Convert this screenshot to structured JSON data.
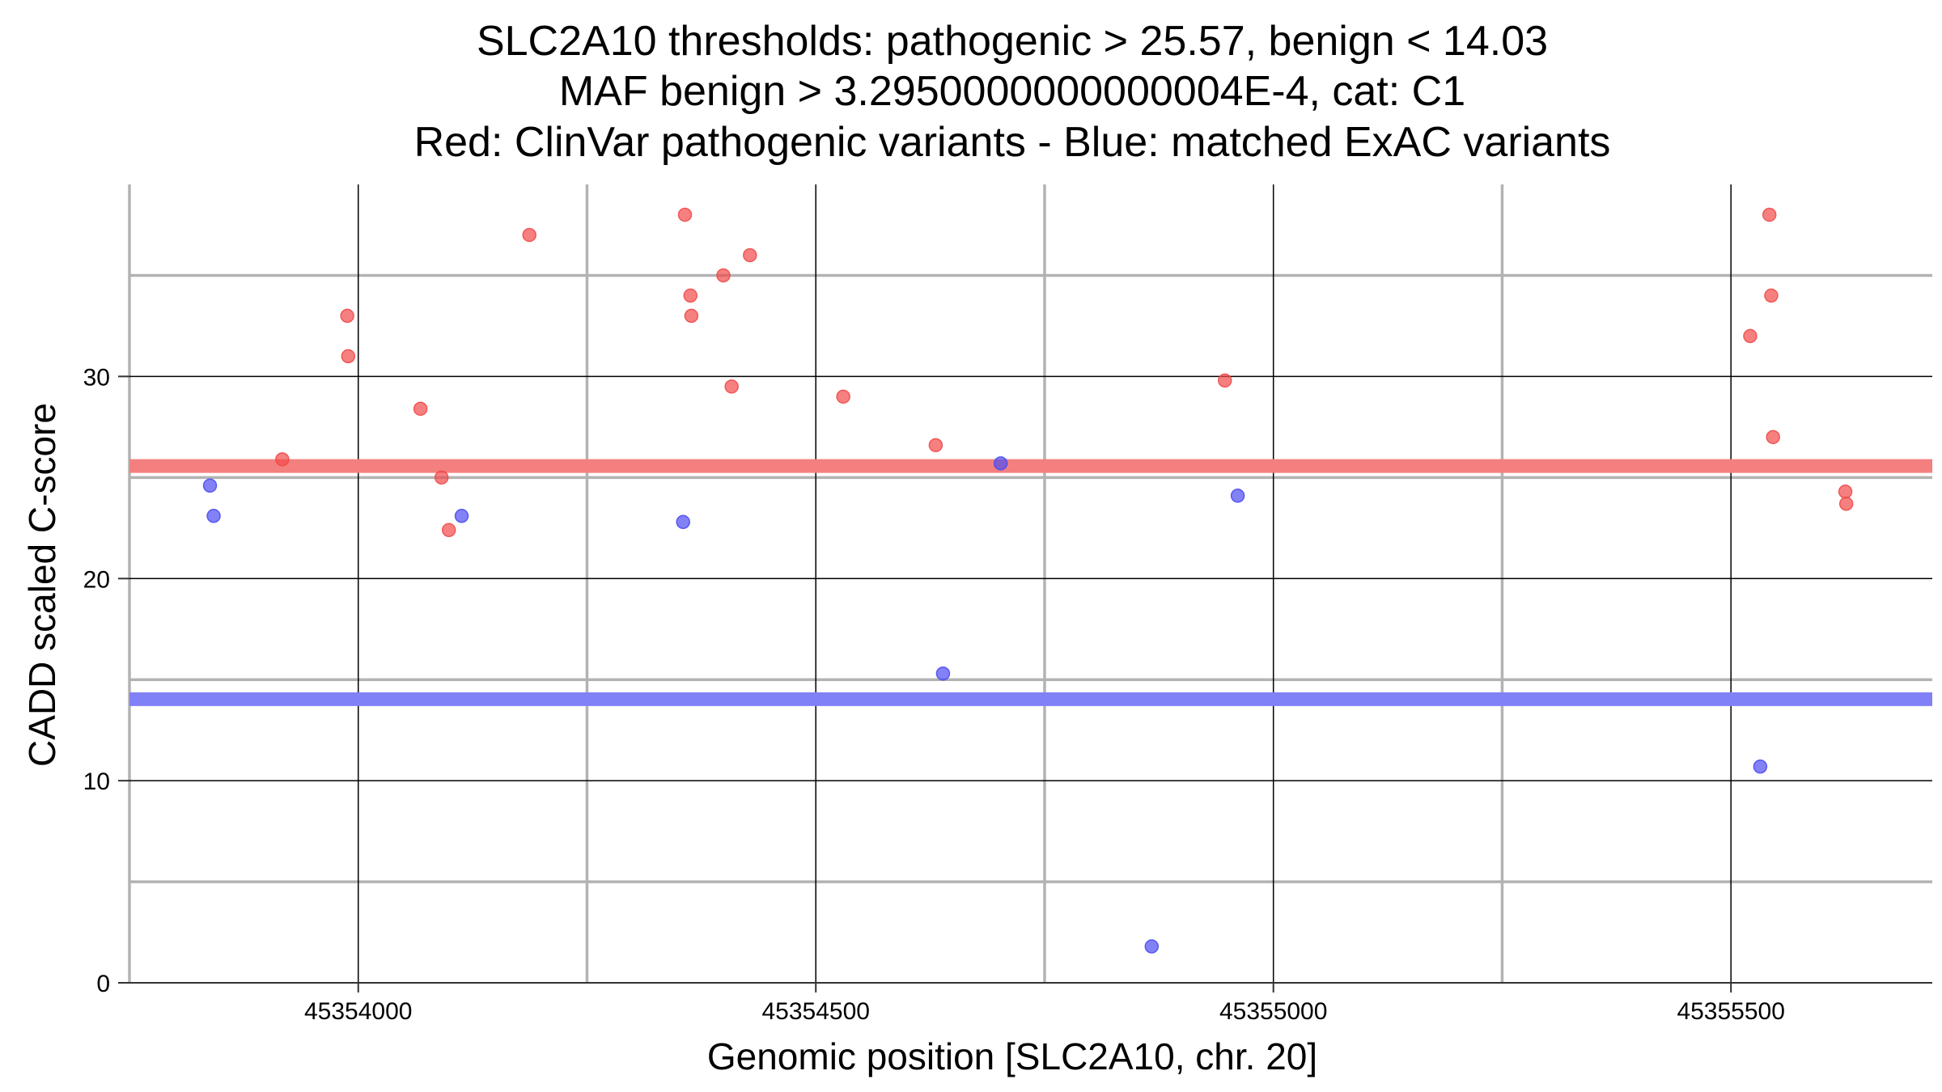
{
  "chart_data": {
    "type": "scatter",
    "title_lines": [
      "SLC2A10 thresholds: pathogenic > 25.57, benign < 14.03",
      "MAF benign > 3.2950000000000004E-4, cat: C1",
      "Red: ClinVar pathogenic variants - Blue: matched ExAC variants"
    ],
    "xlabel": "Genomic position [SLC2A10, chr. 20]",
    "ylabel": "CADD scaled C-score",
    "xlim": [
      45353750,
      45355720
    ],
    "ylim": [
      0,
      39.5
    ],
    "x_ticks": [
      45354000,
      45354500,
      45355000,
      45355500
    ],
    "x_tick_labels": [
      "45354000",
      "45354500",
      "45355000",
      "45355500"
    ],
    "y_ticks": [
      0,
      10,
      20,
      30
    ],
    "y_tick_labels": [
      "0",
      "10",
      "20",
      "30"
    ],
    "x_minor_grid": [
      45353750,
      45354250,
      45354750,
      45355250
    ],
    "y_minor_grid": [
      5,
      15,
      25,
      35
    ],
    "thresholds": {
      "pathogenic": 25.57,
      "benign": 14.03,
      "pathogenic_color": "#f47f7f",
      "benign_color": "#8080f7"
    },
    "series": [
      {
        "name": "ClinVar pathogenic variants",
        "color": "#f24a4a",
        "points": [
          [
            45353917,
            25.9
          ],
          [
            45353988,
            33
          ],
          [
            45353989,
            31
          ],
          [
            45354068,
            28.4
          ],
          [
            45354091,
            25
          ],
          [
            45354099,
            22.4
          ],
          [
            45354187,
            37
          ],
          [
            45354357,
            38
          ],
          [
            45354363,
            34
          ],
          [
            45354364,
            33
          ],
          [
            45354399,
            35
          ],
          [
            45354408,
            29.5
          ],
          [
            45354428,
            36
          ],
          [
            45354530,
            29
          ],
          [
            45354631,
            26.6
          ],
          [
            45354947,
            29.8
          ],
          [
            45355521,
            32
          ],
          [
            45355542,
            38
          ],
          [
            45355544,
            34
          ],
          [
            45355546,
            27
          ],
          [
            45355625,
            24.3
          ],
          [
            45355626,
            23.7
          ]
        ]
      },
      {
        "name": "matched ExAC variants",
        "color": "#4d4df2",
        "points": [
          [
            45353838,
            24.6
          ],
          [
            45353842,
            23.1
          ],
          [
            45354113,
            23.1
          ],
          [
            45354355,
            22.8
          ],
          [
            45354639,
            15.3
          ],
          [
            45354702,
            25.7
          ],
          [
            45354867,
            1.8
          ],
          [
            45354961,
            24.1
          ],
          [
            45355532,
            10.7
          ]
        ]
      }
    ]
  }
}
